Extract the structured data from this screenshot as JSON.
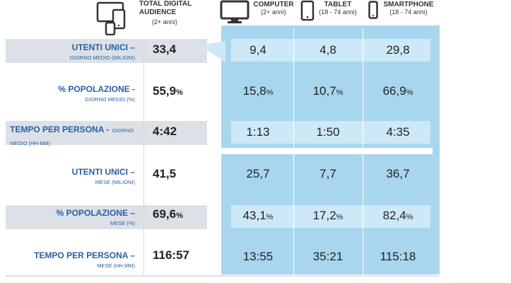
{
  "colors": {
    "accent_blue": "#2a5fa6",
    "panel_blue": "#a8d6ee",
    "band_grey": "#dbe1e6"
  },
  "icons": {
    "total": "multi-device-icon",
    "computer": "monitor-icon",
    "tablet": "tablet-icon",
    "smartphone": "smartphone-icon"
  },
  "header": {
    "total": {
      "title_line1": "TOTAL DIGITAL",
      "title_line2": "AUDIENCE",
      "sub": "(2+ anni)"
    },
    "computer": {
      "title": "COMPUTER",
      "sub": "(2+ anni)"
    },
    "tablet": {
      "title": "TABLET",
      "sub": "(18 - 74 anni)"
    },
    "smartphone": {
      "title": "SMARTPHONE",
      "sub": "(18 - 74 anni)"
    }
  },
  "rows": [
    {
      "label": "UTENTI UNICI –",
      "sub": "GIORNO MEDIO (MILIONI)",
      "total": "33,4",
      "total_unit": "",
      "computer": "9,4",
      "computer_unit": "",
      "tablet": "4,8",
      "tablet_unit": "",
      "smartphone": "29,8",
      "smartphone_unit": ""
    },
    {
      "label": "% POPOLAZIONE -",
      "sub": "GIORNO MEDIO (%)",
      "total": "55,9",
      "total_unit": "%",
      "computer": "15,8",
      "computer_unit": "%",
      "tablet": "10,7",
      "tablet_unit": "%",
      "smartphone": "66,9",
      "smartphone_unit": "%"
    },
    {
      "label": "TEMPO PER PERSONA -",
      "sub": "GIORNO MEDIO (HH MM)",
      "total": "4:42",
      "total_unit": "",
      "computer": "1:13",
      "computer_unit": "",
      "tablet": "1:50",
      "tablet_unit": "",
      "smartphone": "4:35",
      "smartphone_unit": ""
    },
    {
      "label": "UTENTI UNICI –",
      "sub": "MESE (MILIONI)",
      "total": "41,5",
      "total_unit": "",
      "computer": "25,7",
      "computer_unit": "",
      "tablet": "7,7",
      "tablet_unit": "",
      "smartphone": "36,7",
      "smartphone_unit": ""
    },
    {
      "label": "% POPOLAZIONE –",
      "sub": "MESE (%)",
      "total": "69,6",
      "total_unit": "%",
      "computer": "43,1",
      "computer_unit": "%",
      "tablet": "17,2",
      "tablet_unit": "%",
      "smartphone": "82,4",
      "smartphone_unit": "%"
    },
    {
      "label": "TEMPO PER PERSONA –",
      "sub": "MESE (HH MM)",
      "total": "116:57",
      "total_unit": "",
      "computer": "13:55",
      "computer_unit": "",
      "tablet": "35:21",
      "tablet_unit": "",
      "smartphone": "115:18",
      "smartphone_unit": ""
    }
  ]
}
